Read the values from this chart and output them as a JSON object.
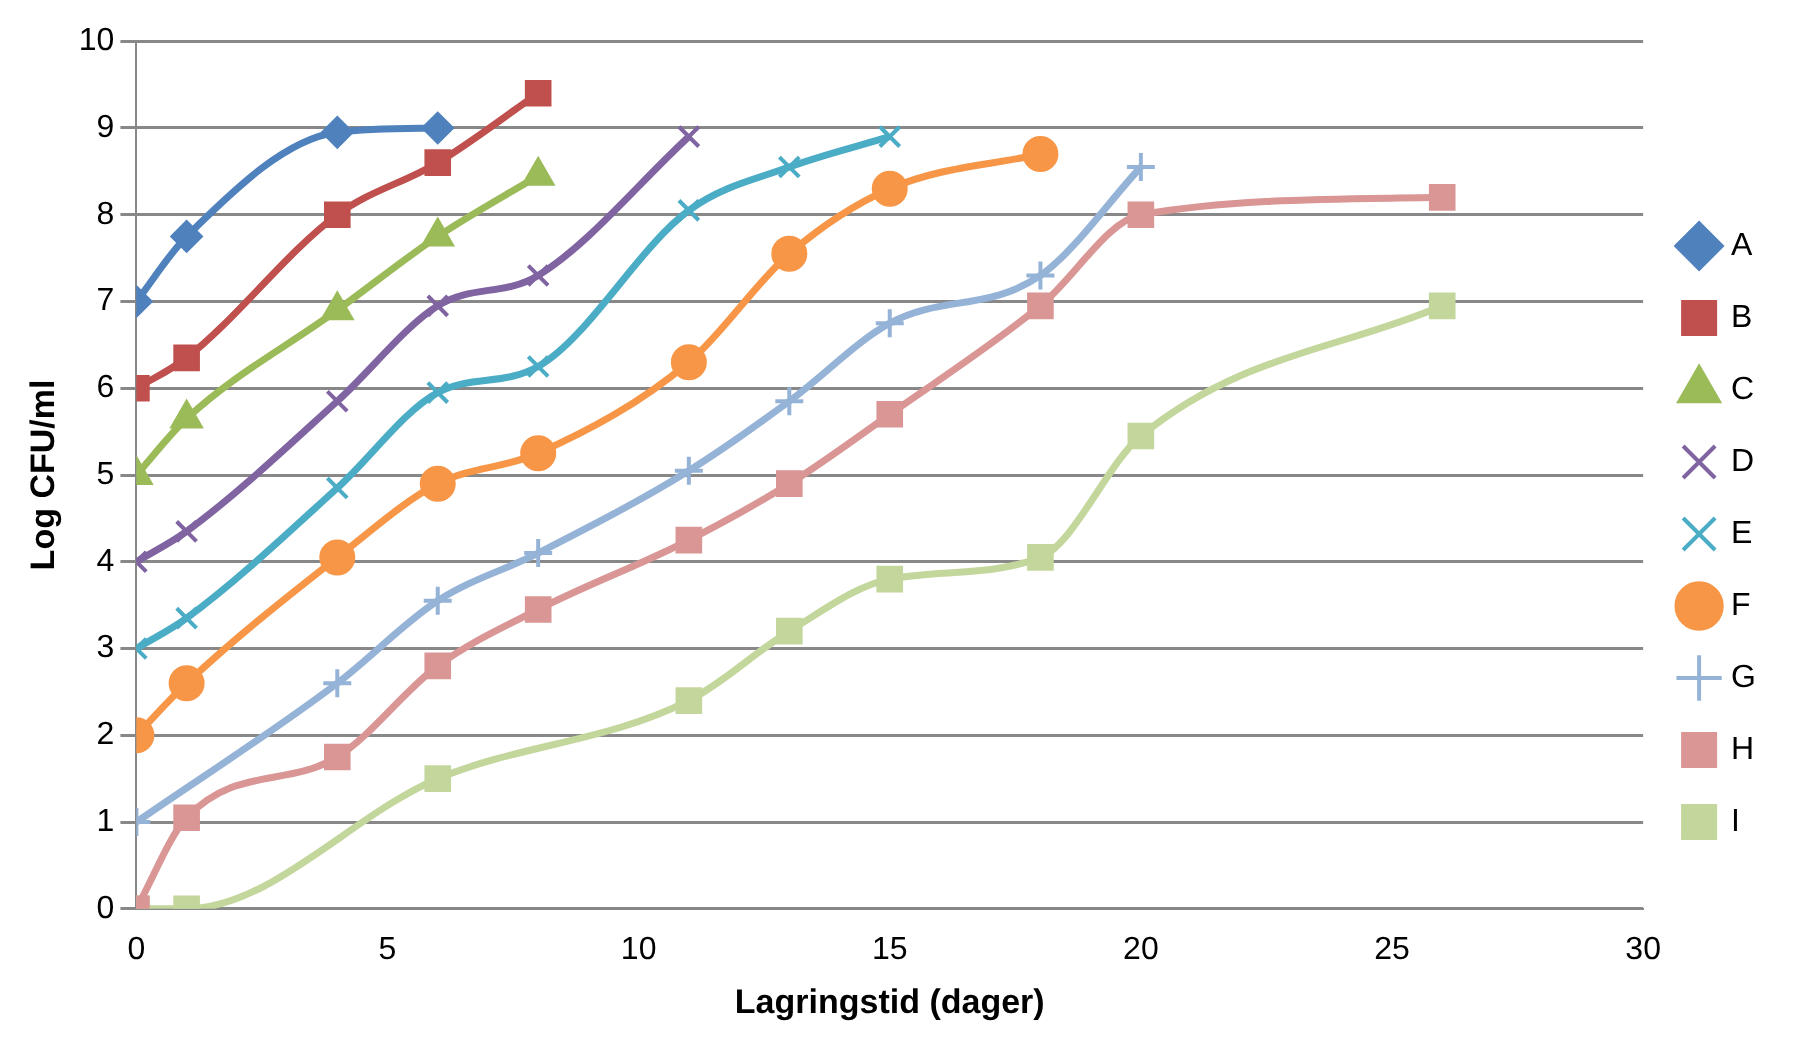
{
  "chart_data": {
    "type": "line",
    "xlabel": "Lagringstid (dager)",
    "ylabel": "Log CFU/ml",
    "xlim": [
      0,
      30
    ],
    "xticks": [
      0,
      5,
      10,
      15,
      20,
      25,
      30
    ],
    "ylim": [
      0,
      10
    ],
    "yticks": [
      0,
      1,
      2,
      3,
      4,
      5,
      6,
      7,
      8,
      9,
      10
    ],
    "grid": "y",
    "legend": "right",
    "line_style": "solid",
    "series": [
      {
        "name": "A",
        "color": "#4f81bd",
        "marker": "diamond",
        "x": [
          0,
          1,
          4,
          6
        ],
        "values": [
          7,
          7.75,
          8.95,
          9
        ]
      },
      {
        "name": "B",
        "color": "#c0504d",
        "marker": "square",
        "x": [
          0,
          1,
          4,
          6,
          8
        ],
        "values": [
          6,
          6.35,
          8,
          8.6,
          9.4
        ]
      },
      {
        "name": "C",
        "color": "#9bbb59",
        "marker": "triangle",
        "x": [
          0,
          1,
          4,
          6,
          8
        ],
        "values": [
          5,
          5.65,
          6.9,
          7.75,
          8.45
        ]
      },
      {
        "name": "D",
        "color": "#8064a2",
        "marker": "cross",
        "x": [
          0,
          1,
          4,
          6,
          8,
          11
        ],
        "values": [
          4,
          4.35,
          5.85,
          6.95,
          7.3,
          8.9
        ]
      },
      {
        "name": "E",
        "color": "#4bacc6",
        "marker": "cross",
        "x": [
          0,
          1,
          4,
          6,
          8,
          11,
          13,
          15
        ],
        "values": [
          3,
          3.35,
          4.85,
          5.95,
          6.25,
          8.05,
          8.55,
          8.9
        ]
      },
      {
        "name": "F",
        "color": "#f79646",
        "marker": "circle",
        "x": [
          0,
          1,
          4,
          6,
          8,
          11,
          13,
          15,
          18
        ],
        "values": [
          2,
          2.6,
          4.05,
          4.9,
          5.25,
          6.3,
          7.55,
          8.3,
          8.7
        ]
      },
      {
        "name": "G",
        "color": "#95b3d7",
        "marker": "plus",
        "x": [
          0,
          4,
          6,
          8,
          11,
          13,
          15,
          18,
          20
        ],
        "values": [
          1,
          2.6,
          3.55,
          4.1,
          5.05,
          5.85,
          6.75,
          7.3,
          8.55
        ]
      },
      {
        "name": "H",
        "color": "#d99694",
        "marker": "square",
        "x": [
          0,
          1,
          4,
          6,
          8,
          11,
          13,
          15,
          18,
          20,
          26
        ],
        "values": [
          0,
          1.05,
          1.75,
          2.8,
          3.45,
          4.25,
          4.9,
          5.7,
          6.95,
          8,
          8.2
        ]
      },
      {
        "name": "I",
        "color": "#c3d69b",
        "marker": "square",
        "x": [
          0,
          1,
          6,
          11,
          13,
          15,
          18,
          20,
          26
        ],
        "values": [
          0,
          0,
          1.5,
          2.4,
          3.2,
          3.8,
          4.05,
          5.45,
          6.95
        ]
      }
    ]
  }
}
